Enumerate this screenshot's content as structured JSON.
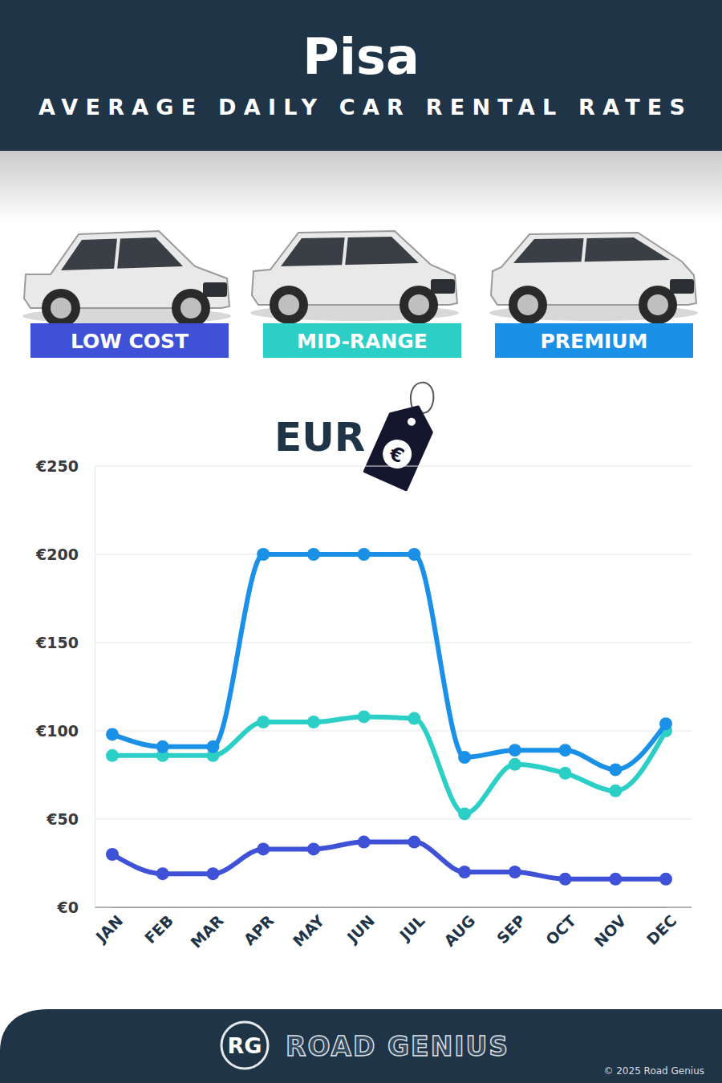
{
  "chart_data": {
    "type": "line",
    "title": "Pisa",
    "subtitle": "AVERAGE DAILY CAR RENTAL RATES",
    "categories": [
      "JAN",
      "FEB",
      "MAR",
      "APR",
      "MAY",
      "JUN",
      "JUL",
      "AUG",
      "SEP",
      "OCT",
      "NOV",
      "DEC"
    ],
    "series": [
      {
        "name": "LOW COST",
        "color": "#3f51d7",
        "marker": "circle",
        "line_style": "solid",
        "values": [
          30,
          19,
          19,
          33,
          33,
          37,
          37,
          20,
          20,
          16,
          16,
          16
        ]
      },
      {
        "name": "MID-RANGE",
        "color": "#2ccfc6",
        "marker": "circle",
        "line_style": "solid",
        "values": [
          86,
          86,
          86,
          105,
          105,
          108,
          107,
          53,
          81,
          76,
          66,
          100
        ]
      },
      {
        "name": "PREMIUM",
        "color": "#1a90e6",
        "marker": "circle",
        "line_style": "solid",
        "values": [
          98,
          91,
          91,
          200,
          200,
          200,
          200,
          85,
          89,
          89,
          78,
          104
        ]
      }
    ],
    "ylim": [
      0,
      250
    ],
    "yticks": [
      {
        "value": 0,
        "label": "€0"
      },
      {
        "value": 50,
        "label": "€50"
      },
      {
        "value": 100,
        "label": "€100"
      },
      {
        "value": 150,
        "label": "€150"
      },
      {
        "value": 200,
        "label": "€200"
      },
      {
        "value": 250,
        "label": "€250"
      }
    ],
    "grid": true,
    "legend": "top"
  },
  "currency_label": "EUR",
  "tag_symbol": "€",
  "footer": {
    "logo": "RG",
    "brand": "ROAD GENIUS",
    "copyright": "© 2025 Road Genius"
  }
}
